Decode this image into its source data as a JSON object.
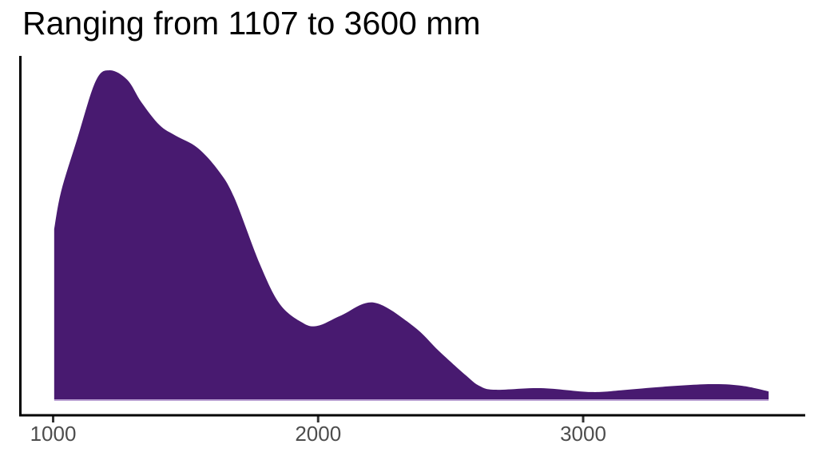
{
  "title": "Ranging from 1107 to 3600 mm",
  "chart_data": {
    "type": "area",
    "subtype": "kernel-density",
    "title": "Ranging from 1107 to 3600 mm",
    "xlabel": "",
    "ylabel": "",
    "x_unit": "mm",
    "data_min_mm": 1107,
    "data_max_mm": 3600,
    "x_ticks": [
      1000,
      2000,
      3000
    ],
    "x_axis_range": [
      875,
      3840
    ],
    "y_relative_range": [
      0,
      1.09
    ],
    "grid": false,
    "legend": false,
    "series": [
      {
        "name": "density",
        "points": [
          [
            1004,
            0.517
          ],
          [
            1030,
            0.631
          ],
          [
            1090,
            0.789
          ],
          [
            1160,
            0.966
          ],
          [
            1213,
            1.0
          ],
          [
            1280,
            0.971
          ],
          [
            1333,
            0.903
          ],
          [
            1402,
            0.833
          ],
          [
            1463,
            0.801
          ],
          [
            1544,
            0.765
          ],
          [
            1622,
            0.697
          ],
          [
            1683,
            0.614
          ],
          [
            1779,
            0.413
          ],
          [
            1854,
            0.291
          ],
          [
            1936,
            0.235
          ],
          [
            1996,
            0.223
          ],
          [
            2087,
            0.255
          ],
          [
            2210,
            0.294
          ],
          [
            2358,
            0.223
          ],
          [
            2457,
            0.146
          ],
          [
            2557,
            0.073
          ],
          [
            2608,
            0.041
          ],
          [
            2668,
            0.029
          ],
          [
            2840,
            0.034
          ],
          [
            3030,
            0.022
          ],
          [
            3150,
            0.028
          ],
          [
            3300,
            0.038
          ],
          [
            3482,
            0.046
          ],
          [
            3600,
            0.041
          ],
          [
            3700,
            0.024
          ]
        ]
      }
    ]
  },
  "colors": {
    "fill": "#481A70",
    "axis_line": "#000000",
    "tick_mark": "#333333",
    "tick_label": "#4D4D4D",
    "baseline_edge": "#B9A0D2",
    "title": "#000000",
    "background": "#FFFFFF"
  }
}
